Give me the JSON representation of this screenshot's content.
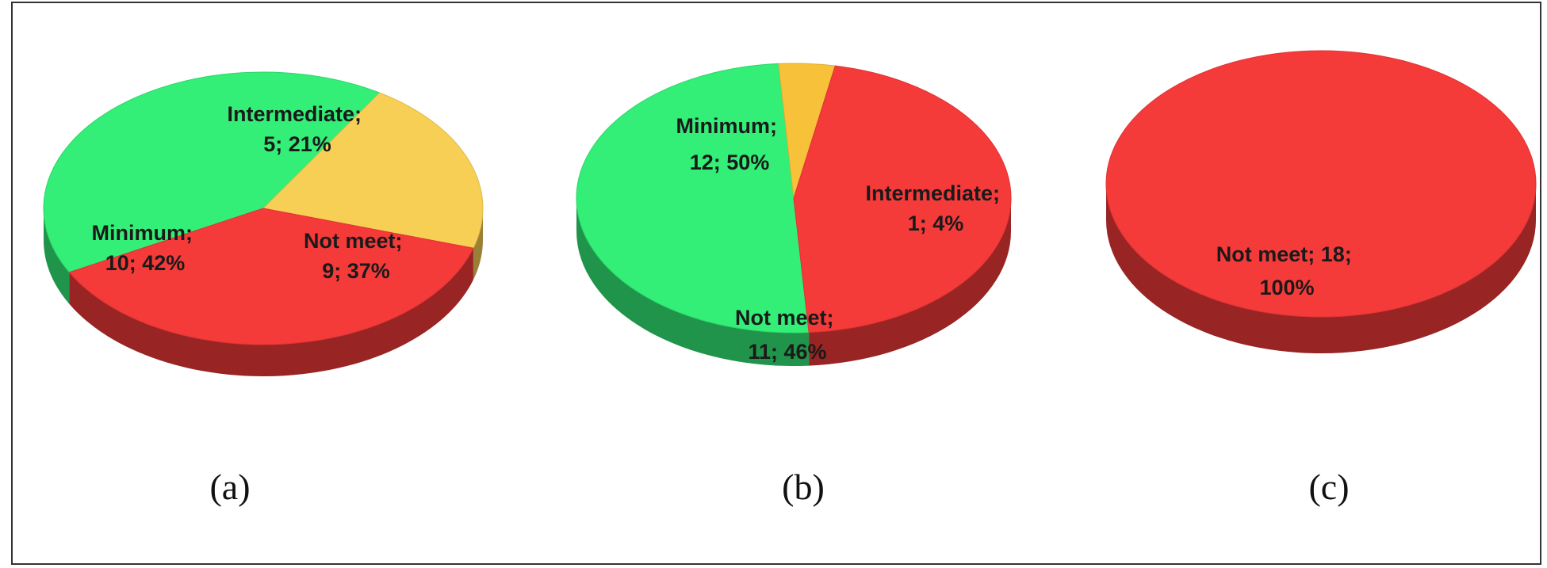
{
  "chart_data": [
    {
      "type": "pie",
      "caption": "(a)",
      "slices": [
        {
          "name": "Minimum",
          "value": 10,
          "percent": 42,
          "color": "#33ee77",
          "line1": "Minimum;",
          "line2": "10; 42%"
        },
        {
          "name": "Intermediate",
          "value": 5,
          "percent": 21,
          "color": "#f7cf55",
          "line1": "Intermediate;",
          "line2": "5; 21%"
        },
        {
          "name": "Not meet",
          "value": 9,
          "percent": 37,
          "color": "#f53a3a",
          "line1": "Not meet;",
          "line2": "9; 37%"
        }
      ]
    },
    {
      "type": "pie",
      "caption": "(b)",
      "slices": [
        {
          "name": "Minimum",
          "value": 12,
          "percent": 50,
          "color": "#33ee77",
          "line1": "Minimum;",
          "line2": "12; 50%"
        },
        {
          "name": "Intermediate",
          "value": 1,
          "percent": 4,
          "color": "#f7c23a",
          "line1": "Intermediate;",
          "line2": "1; 4%"
        },
        {
          "name": "Not meet",
          "value": 11,
          "percent": 46,
          "color": "#f53a3a",
          "line1": "Not meet;",
          "line2": "11; 46%"
        }
      ]
    },
    {
      "type": "pie",
      "caption": "(c)",
      "slices": [
        {
          "name": "Not meet",
          "value": 18,
          "percent": 100,
          "color": "#f53a3a",
          "line1": "Not meet; 18;",
          "line2": "100%"
        }
      ]
    }
  ]
}
